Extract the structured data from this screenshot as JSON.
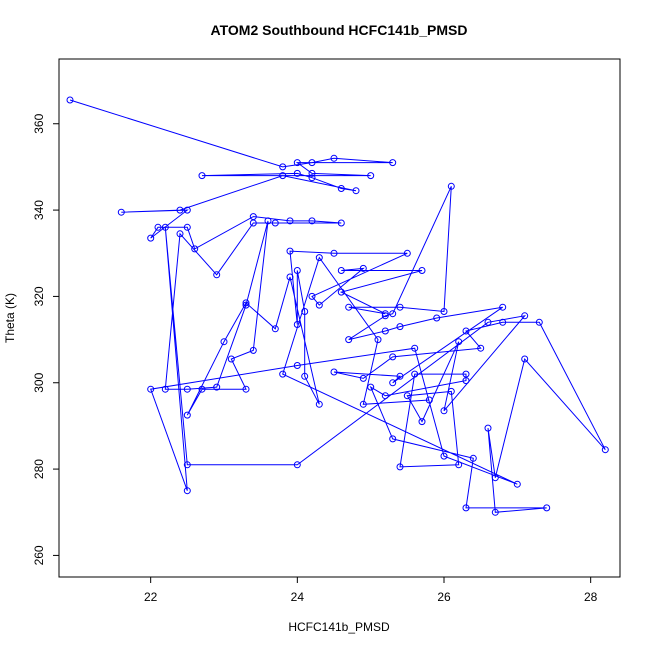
{
  "chart_data": {
    "type": "line",
    "title": "ATOM2 Southbound HCFC141b_PMSD",
    "xlabel": "HCFC141b_PMSD",
    "ylabel": "Theta (K)",
    "xlim": [
      20.75,
      28.4
    ],
    "ylim": [
      255,
      375
    ],
    "xticks": [
      22,
      24,
      26,
      28
    ],
    "yticks": [
      260,
      280,
      300,
      320,
      340,
      360
    ],
    "grid": false,
    "legend": "none",
    "series_color": "#0000ff",
    "points": [
      [
        20.9,
        365.5
      ],
      [
        23.8,
        350.0
      ],
      [
        24.2,
        351.0
      ],
      [
        24.5,
        352.0
      ],
      [
        25.3,
        351.0
      ],
      [
        24.0,
        351.0
      ],
      [
        24.2,
        348.5
      ],
      [
        25.0,
        348.0
      ],
      [
        22.7,
        348.0
      ],
      [
        24.0,
        348.5
      ],
      [
        24.2,
        347.5
      ],
      [
        24.6,
        345.0
      ],
      [
        24.8,
        344.5
      ],
      [
        23.8,
        348.0
      ],
      [
        22.4,
        340.0
      ],
      [
        21.6,
        339.5
      ],
      [
        22.5,
        340.0
      ],
      [
        22.0,
        333.5
      ],
      [
        22.1,
        336.0
      ],
      [
        22.5,
        336.0
      ],
      [
        22.6,
        331.0
      ],
      [
        23.4,
        338.5
      ],
      [
        23.9,
        337.5
      ],
      [
        24.2,
        337.5
      ],
      [
        24.6,
        337.0
      ],
      [
        23.7,
        337.0
      ],
      [
        23.4,
        337.0
      ],
      [
        22.9,
        325.0
      ],
      [
        22.4,
        334.5
      ],
      [
        22.2,
        298.5
      ],
      [
        22.5,
        298.5
      ],
      [
        22.9,
        299.0
      ],
      [
        23.3,
        318.0
      ],
      [
        23.6,
        337.5
      ],
      [
        23.4,
        307.5
      ],
      [
        23.1,
        305.5
      ],
      [
        23.3,
        298.5
      ],
      [
        22.7,
        298.5
      ],
      [
        22.5,
        292.5
      ],
      [
        23.0,
        309.5
      ],
      [
        23.3,
        318.5
      ],
      [
        23.7,
        312.5
      ],
      [
        23.9,
        324.5
      ],
      [
        24.3,
        295.0
      ],
      [
        24.1,
        301.5
      ],
      [
        24.1,
        316.5
      ],
      [
        24.0,
        326.0
      ],
      [
        24.0,
        313.5
      ],
      [
        23.9,
        330.5
      ],
      [
        24.5,
        330.0
      ],
      [
        25.5,
        330.0
      ],
      [
        24.2,
        320.0
      ],
      [
        24.3,
        318.0
      ],
      [
        24.9,
        326.5
      ],
      [
        24.6,
        326.0
      ],
      [
        25.7,
        326.0
      ],
      [
        24.6,
        321.0
      ],
      [
        25.2,
        316.0
      ],
      [
        24.7,
        317.5
      ],
      [
        25.4,
        317.5
      ],
      [
        26.0,
        316.5
      ],
      [
        26.1,
        345.5
      ],
      [
        25.3,
        316.0
      ],
      [
        25.2,
        315.5
      ],
      [
        24.7,
        310.0
      ],
      [
        25.2,
        312.0
      ],
      [
        25.4,
        313.0
      ],
      [
        25.9,
        315.0
      ],
      [
        26.8,
        317.5
      ],
      [
        25.3,
        300.0
      ],
      [
        25.4,
        301.5
      ],
      [
        24.5,
        302.5
      ],
      [
        24.9,
        301.0
      ],
      [
        25.3,
        306.0
      ],
      [
        26.5,
        308.0
      ],
      [
        26.3,
        312.0
      ],
      [
        26.8,
        314.0
      ],
      [
        27.3,
        314.0
      ],
      [
        28.2,
        284.5
      ],
      [
        27.1,
        305.5
      ],
      [
        26.7,
        278.0
      ],
      [
        26.6,
        289.5
      ],
      [
        26.7,
        270.0
      ],
      [
        27.4,
        271.0
      ],
      [
        26.3,
        271.0
      ],
      [
        26.4,
        282.5
      ],
      [
        25.3,
        287.0
      ],
      [
        25.0,
        299.0
      ],
      [
        25.2,
        297.0
      ],
      [
        26.3,
        300.5
      ],
      [
        26.3,
        302.0
      ],
      [
        25.6,
        302.0
      ],
      [
        25.4,
        280.5
      ],
      [
        26.2,
        281.0
      ],
      [
        26.1,
        298.0
      ],
      [
        25.5,
        297.0
      ],
      [
        25.7,
        291.0
      ],
      [
        26.2,
        309.5
      ],
      [
        26.0,
        293.5
      ],
      [
        27.1,
        315.5
      ],
      [
        26.6,
        314.0
      ],
      [
        24.0,
        281.0
      ],
      [
        22.5,
        281.0
      ],
      [
        22.2,
        336.0
      ],
      [
        22.5,
        275.0
      ],
      [
        22.0,
        298.5
      ],
      [
        24.0,
        304.0
      ],
      [
        25.6,
        308.0
      ],
      [
        26.0,
        283.0
      ],
      [
        27.0,
        276.5
      ],
      [
        23.8,
        302.0
      ],
      [
        24.3,
        329.0
      ],
      [
        25.1,
        310.0
      ],
      [
        24.9,
        295.0
      ],
      [
        25.8,
        296.0
      ]
    ]
  }
}
